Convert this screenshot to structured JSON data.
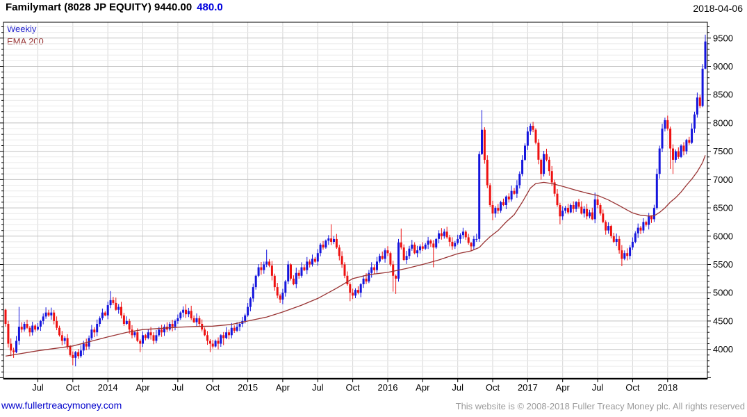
{
  "header": {
    "title_main": "Familymart (8028 JP EQUITY) 9440.00",
    "title_change": "480.0",
    "date": "2018-04-06"
  },
  "legend": {
    "series": "Weekly",
    "ema": "EMA 200"
  },
  "footer": {
    "site": "www.fullertreacymoney.com",
    "copyright": "This website is © 2008-2018 Fuller Treacy Money plc. All rights reserved"
  },
  "chart_data": {
    "type": "candlestick",
    "title": "Familymart (8028 JP EQUITY)",
    "timeframe": "Weekly",
    "overlay": "EMA 200",
    "last_price": 9440.0,
    "change": 480.0,
    "ylim": [
      3480,
      9780
    ],
    "y_major_ticks": [
      4000,
      4500,
      5000,
      5500,
      6000,
      6500,
      7000,
      7500,
      8000,
      8500,
      9000,
      9500
    ],
    "y_minor_step": 100,
    "x_ticks": [
      {
        "label": "Jul",
        "week": 12
      },
      {
        "label": "Oct",
        "week": 25
      },
      {
        "label": "2014",
        "week": 38
      },
      {
        "label": "Apr",
        "week": 51
      },
      {
        "label": "Jul",
        "week": 64
      },
      {
        "label": "Oct",
        "week": 77
      },
      {
        "label": "2015",
        "week": 90
      },
      {
        "label": "Apr",
        "week": 103
      },
      {
        "label": "Jul",
        "week": 116
      },
      {
        "label": "Oct",
        "week": 129
      },
      {
        "label": "2016",
        "week": 142
      },
      {
        "label": "Apr",
        "week": 155
      },
      {
        "label": "Jul",
        "week": 168
      },
      {
        "label": "Oct",
        "week": 181
      },
      {
        "label": "2017",
        "week": 194
      },
      {
        "label": "Apr",
        "week": 207
      },
      {
        "label": "Jul",
        "week": 220
      },
      {
        "label": "Oct",
        "week": 233
      },
      {
        "label": "2018",
        "week": 246
      }
    ],
    "first_open": 4700,
    "closes": [
      4450,
      4100,
      3980,
      3950,
      4150,
      4400,
      4350,
      4450,
      4380,
      4300,
      4420,
      4350,
      4400,
      4500,
      4580,
      4650,
      4600,
      4650,
      4500,
      4380,
      4250,
      4150,
      4200,
      4050,
      3900,
      3850,
      3950,
      3880,
      3980,
      4100,
      4050,
      4200,
      4350,
      4300,
      4450,
      4550,
      4650,
      4600,
      4780,
      4870,
      4820,
      4700,
      4750,
      4600,
      4450,
      4500,
      4350,
      4250,
      4300,
      4150,
      4100,
      4250,
      4200,
      4300,
      4250,
      4150,
      4250,
      4350,
      4300,
      4400,
      4350,
      4450,
      4400,
      4500,
      4550,
      4650,
      4700,
      4620,
      4680,
      4550,
      4480,
      4550,
      4450,
      4350,
      4250,
      4150,
      4100,
      4050,
      4150,
      4100,
      4250,
      4200,
      4300,
      4250,
      4380,
      4330,
      4400,
      4450,
      4500,
      4600,
      4750,
      4900,
      5100,
      5300,
      5450,
      5400,
      5500,
      5550,
      5480,
      5300,
      5100,
      4950,
      4880,
      5000,
      5200,
      5500,
      5250,
      5150,
      5350,
      5300,
      5450,
      5400,
      5550,
      5500,
      5600,
      5550,
      5700,
      5850,
      5800,
      5920,
      5960,
      5900,
      5950,
      5800,
      5650,
      5500,
      5300,
      5150,
      5000,
      4950,
      5050,
      5000,
      5150,
      5250,
      5200,
      5350,
      5450,
      5400,
      5550,
      5650,
      5600,
      5750,
      5700,
      5500,
      5300,
      5250,
      5890,
      5800,
      5580,
      5650,
      5780,
      5850,
      5700,
      5750,
      5820,
      5780,
      5850,
      5920,
      5870,
      5800,
      5950,
      6050,
      6000,
      6080,
      5980,
      5900,
      5820,
      5880,
      5950,
      6020,
      6080,
      5980,
      5880,
      5820,
      5950,
      5950,
      7450,
      7880,
      7350,
      6900,
      6550,
      6400,
      6500,
      6450,
      6600,
      6550,
      6700,
      6650,
      6800,
      6750,
      6900,
      7100,
      7350,
      7600,
      7850,
      7950,
      7880,
      7650,
      7350,
      7100,
      7450,
      7350,
      7150,
      6950,
      6750,
      6550,
      6350,
      6450,
      6500,
      6420,
      6550,
      6480,
      6600,
      6520,
      6400,
      6480,
      6350,
      6420,
      6300,
      6650,
      6550,
      6400,
      6250,
      6100,
      6180,
      6000,
      5900,
      5950,
      5750,
      5600,
      5700,
      5650,
      5800,
      5900,
      6050,
      6150,
      6100,
      6250,
      6200,
      6350,
      6300,
      6500,
      7100,
      7550,
      7900,
      8050,
      7900,
      7550,
      7350,
      7500,
      7400,
      7600,
      7500,
      7700,
      7650,
      7900,
      8150,
      8450,
      8300,
      8960,
      9440
    ],
    "wick_overrides": {
      "0": {
        "low": 4400
      },
      "2": {
        "low": 3880
      },
      "3": {
        "low": 3850
      },
      "5": {
        "high": 4750
      },
      "25": {
        "low": 3720
      },
      "26": {
        "low": 3700
      },
      "39": {
        "high": 5030
      },
      "50": {
        "low": 3950
      },
      "76": {
        "low": 3950
      },
      "79": {
        "low": 4000
      },
      "81": {
        "low": 4075
      },
      "97": {
        "high": 5760
      },
      "102": {
        "low": 4820
      },
      "121": {
        "high": 6210
      },
      "128": {
        "low": 4850
      },
      "144": {
        "low": 5020
      },
      "145": {
        "low": 4980
      },
      "147": {
        "high": 6135
      },
      "159": {
        "low": 5450
      },
      "176": {
        "low": 5900
      },
      "177": {
        "high": 8230
      },
      "181": {
        "low": 6280
      },
      "195": {
        "high": 7990
      },
      "199": {
        "low": 7000
      },
      "206": {
        "low": 6210
      },
      "219": {
        "high": 6770
      },
      "229": {
        "low": 5470
      },
      "247": {
        "low": 7190
      },
      "248": {
        "low": 7100
      },
      "260": {
        "high": 9560,
        "low": 8950
      }
    },
    "ema_points": [
      [
        0,
        3880
      ],
      [
        12,
        3975
      ],
      [
        25,
        4060
      ],
      [
        38,
        4220
      ],
      [
        45,
        4300
      ],
      [
        51,
        4350
      ],
      [
        64,
        4390
      ],
      [
        71,
        4405
      ],
      [
        77,
        4410
      ],
      [
        84,
        4440
      ],
      [
        90,
        4500
      ],
      [
        97,
        4570
      ],
      [
        103,
        4660
      ],
      [
        110,
        4780
      ],
      [
        116,
        4900
      ],
      [
        123,
        5080
      ],
      [
        129,
        5250
      ],
      [
        135,
        5320
      ],
      [
        142,
        5360
      ],
      [
        149,
        5430
      ],
      [
        155,
        5500
      ],
      [
        161,
        5580
      ],
      [
        168,
        5690
      ],
      [
        173,
        5740
      ],
      [
        176,
        5800
      ],
      [
        178,
        5900
      ],
      [
        180,
        5990
      ],
      [
        183,
        6100
      ],
      [
        186,
        6250
      ],
      [
        189,
        6380
      ],
      [
        192,
        6600
      ],
      [
        195,
        6850
      ],
      [
        197,
        6930
      ],
      [
        200,
        6950
      ],
      [
        203,
        6930
      ],
      [
        207,
        6880
      ],
      [
        212,
        6810
      ],
      [
        216,
        6760
      ],
      [
        220,
        6720
      ],
      [
        224,
        6640
      ],
      [
        228,
        6540
      ],
      [
        231,
        6460
      ],
      [
        233,
        6410
      ],
      [
        236,
        6370
      ],
      [
        239,
        6355
      ],
      [
        241,
        6360
      ],
      [
        243,
        6420
      ],
      [
        245,
        6500
      ],
      [
        247,
        6600
      ],
      [
        249,
        6680
      ],
      [
        251,
        6780
      ],
      [
        253,
        6900
      ],
      [
        255,
        7010
      ],
      [
        257,
        7140
      ],
      [
        259,
        7300
      ],
      [
        260,
        7430
      ]
    ],
    "colors": {
      "up": "#1515dd",
      "down": "#ee1111",
      "ema": "#993333",
      "grid_minor": "#eaeaea",
      "grid_major": "#c2c2c2",
      "grid_vert": "#d6d6d6",
      "axis": "#000000",
      "label": "#000000"
    }
  }
}
